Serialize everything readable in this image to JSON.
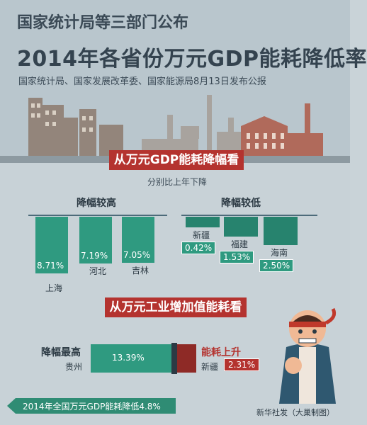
{
  "header": {
    "title_line1": "国家统计局等三部门公布",
    "title_line2": "2014年各省份万元GDP能耗降低率",
    "subtitle": "国家统计局、国家发展改革委、国家能源局8月13日发布公报"
  },
  "section1": {
    "banner": "从万元GDP能耗降幅看",
    "note": "分别比上年下降",
    "high_group_label": "降幅较高",
    "low_group_label": "降幅较低"
  },
  "section2": {
    "banner": "从万元工业增加值能耗看",
    "left_label": "降幅最高",
    "right_label": "能耗上升"
  },
  "footer": {
    "summary": "2014年全国万元GDP能耗降低4.8%",
    "credit": "新华社发（大巢制图）"
  },
  "colors": {
    "accent_green": "#2f9a80",
    "accent_red": "#b4332f",
    "dark": "#34434f"
  },
  "chart_data": [
    {
      "type": "bar",
      "title": "从万元GDP能耗降幅看",
      "subtitle": "分别比上年下降",
      "unit": "%",
      "groups": [
        {
          "name": "降幅较高",
          "categories": [
            "上海",
            "河北",
            "吉林"
          ],
          "values": [
            8.71,
            7.19,
            7.05
          ],
          "labels": [
            "8.71%",
            "7.19%",
            "7.05%"
          ]
        },
        {
          "name": "降幅较低",
          "categories": [
            "新疆",
            "福建",
            "海南"
          ],
          "values": [
            0.42,
            1.53,
            2.5
          ],
          "labels": [
            "0.42%",
            "1.53%",
            "2.50%"
          ]
        }
      ]
    },
    {
      "type": "bar",
      "title": "从万元工业增加值能耗看",
      "orientation": "horizontal",
      "series": [
        {
          "name": "降幅最高",
          "category": "贵州",
          "value": 13.39,
          "label": "13.39%"
        },
        {
          "name": "能耗上升",
          "category": "新疆",
          "value": 2.31,
          "label": "2.31%"
        }
      ]
    }
  ]
}
